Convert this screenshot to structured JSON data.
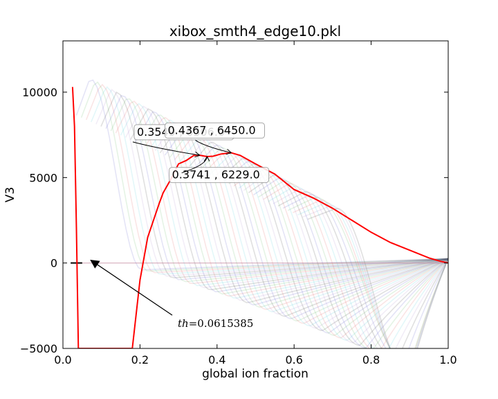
{
  "chart_data": {
    "type": "line",
    "title": "xibox_smth4_edge10.pkl",
    "xlabel": "global ion fraction",
    "ylabel": "V3",
    "xlim": [
      0.0,
      1.0
    ],
    "ylim": [
      -5000,
      13000
    ],
    "xticks": [
      0.0,
      0.2,
      0.4,
      0.6,
      0.8,
      1.0
    ],
    "xtick_labels": [
      "0.0",
      "0.2",
      "0.4",
      "0.6",
      "0.8",
      "1.0"
    ],
    "yticks": [
      -5000,
      0,
      5000,
      10000
    ],
    "ytick_labels": [
      "−5000",
      "0",
      "5000",
      "10000"
    ],
    "grid": false,
    "legend": "none",
    "highlight_series": {
      "color": "#ff0000",
      "x": [
        0.025,
        0.03,
        0.035,
        0.04,
        0.18,
        0.2,
        0.22,
        0.25,
        0.26,
        0.28,
        0.3,
        0.32,
        0.34,
        0.355,
        0.374,
        0.39,
        0.41,
        0.437,
        0.46,
        0.5,
        0.55,
        0.6,
        0.65,
        0.7,
        0.75,
        0.8,
        0.85,
        0.9,
        0.95,
        0.98,
        1.0
      ],
      "y": [
        10300,
        8000,
        2000,
        -5000,
        -5000,
        -1000,
        1500,
        3500,
        4100,
        4900,
        5800,
        6000,
        6300,
        6306,
        6229,
        6250,
        6380,
        6450,
        6300,
        5800,
        5200,
        4300,
        3800,
        3200,
        2500,
        1800,
        1200,
        750,
        300,
        100,
        0
      ]
    },
    "background_series_colors": [
      "#1f1fb4",
      "#2ca02c",
      "#d62728",
      "#17becf",
      "#9467bd",
      "#555555"
    ],
    "annotations": [
      {
        "text": "0.3549 , 6306.0",
        "x": 0.3549,
        "y": 6306.0
      },
      {
        "text": "0.4367 , 6450.0",
        "x": 0.4367,
        "y": 6450.0
      },
      {
        "text": "0.3741 , 6229.0",
        "x": 0.3741,
        "y": 6229.0
      }
    ],
    "arrow_annotation": {
      "text": "th = 0.0615385",
      "text_prefix": "th",
      "text_value": "=0.0615385",
      "x": 0.0615385,
      "y": 0
    }
  }
}
